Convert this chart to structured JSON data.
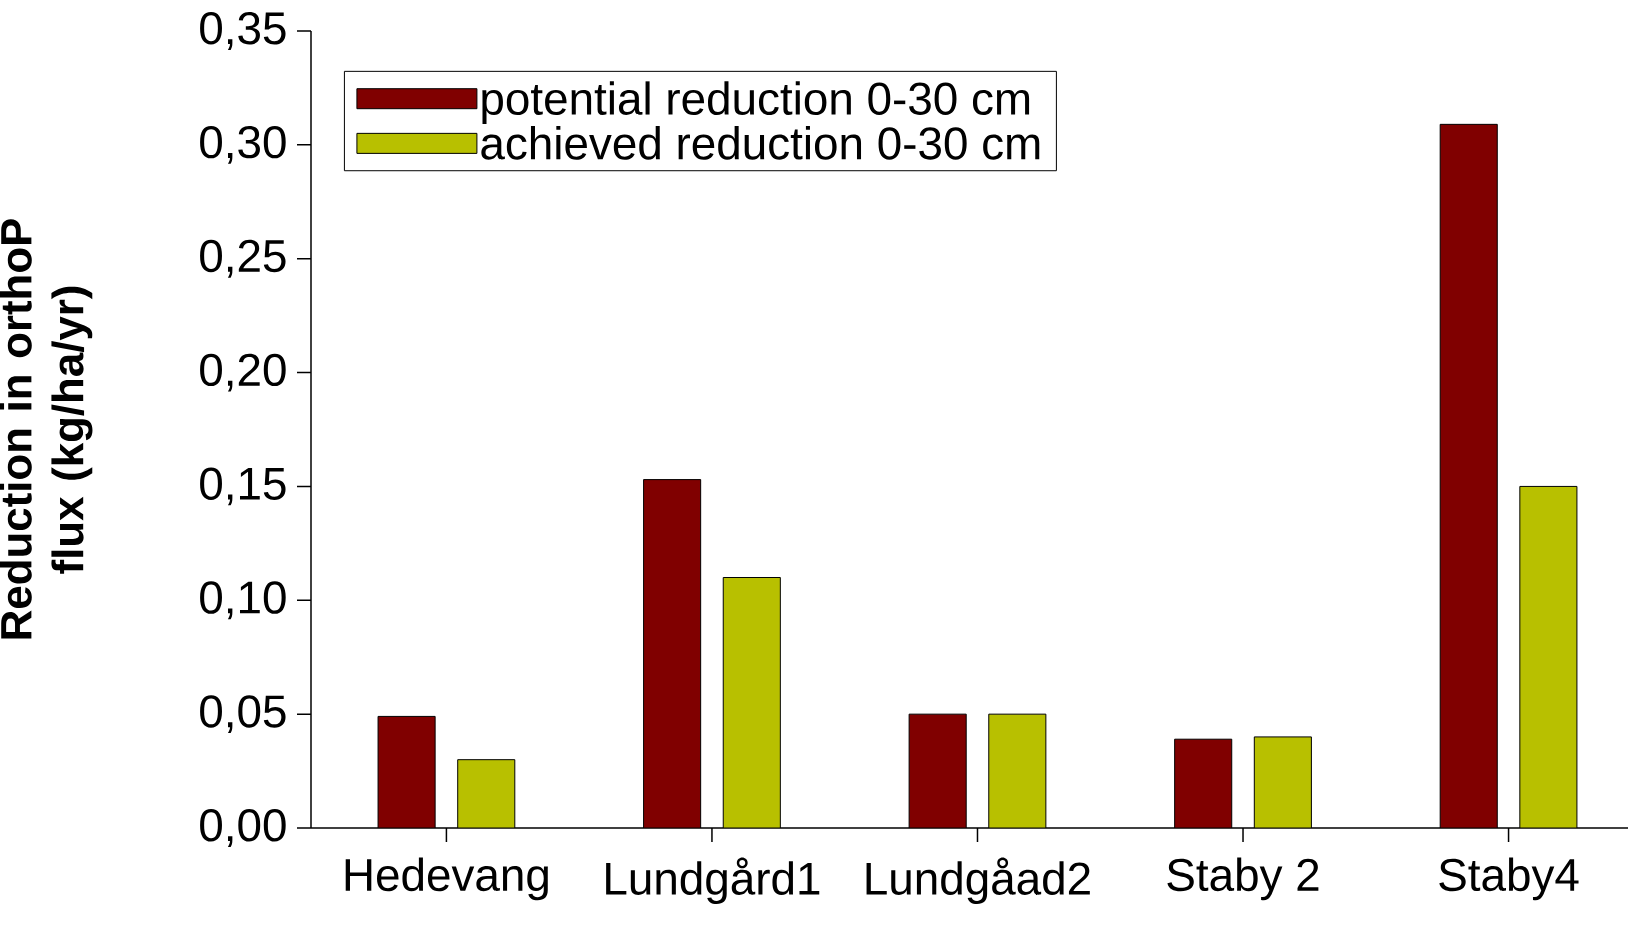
{
  "chart_data": {
    "type": "bar",
    "ylabel": "Reduction in orthoP flux (kg/ha/yr)",
    "categories": [
      "Hedevang",
      "Lundgård1",
      "Lundgåad2",
      "Staby 2",
      "Staby4"
    ],
    "series": [
      {
        "name": "potential reduction 0-30 cm",
        "color": "#800000",
        "values": [
          0.049,
          0.153,
          0.05,
          0.039,
          0.309
        ]
      },
      {
        "name": "achieved reduction 0-30 cm",
        "color": "#b8c000",
        "values": [
          0.03,
          0.11,
          0.05,
          0.04,
          0.15
        ]
      }
    ],
    "ylim": [
      0,
      0.35
    ],
    "yticks": [
      {
        "value": 0,
        "label": "0,00"
      },
      {
        "value": 0.05,
        "label": "0,05"
      },
      {
        "value": 0.1,
        "label": "0,10"
      },
      {
        "value": 0.15,
        "label": "0,15"
      },
      {
        "value": 0.2,
        "label": "0,20"
      },
      {
        "value": 0.25,
        "label": "0,25"
      },
      {
        "value": 0.3,
        "label": "0,30"
      },
      {
        "value": 0.35,
        "label": "0,35"
      }
    ],
    "legend": "top left",
    "grid": false
  }
}
